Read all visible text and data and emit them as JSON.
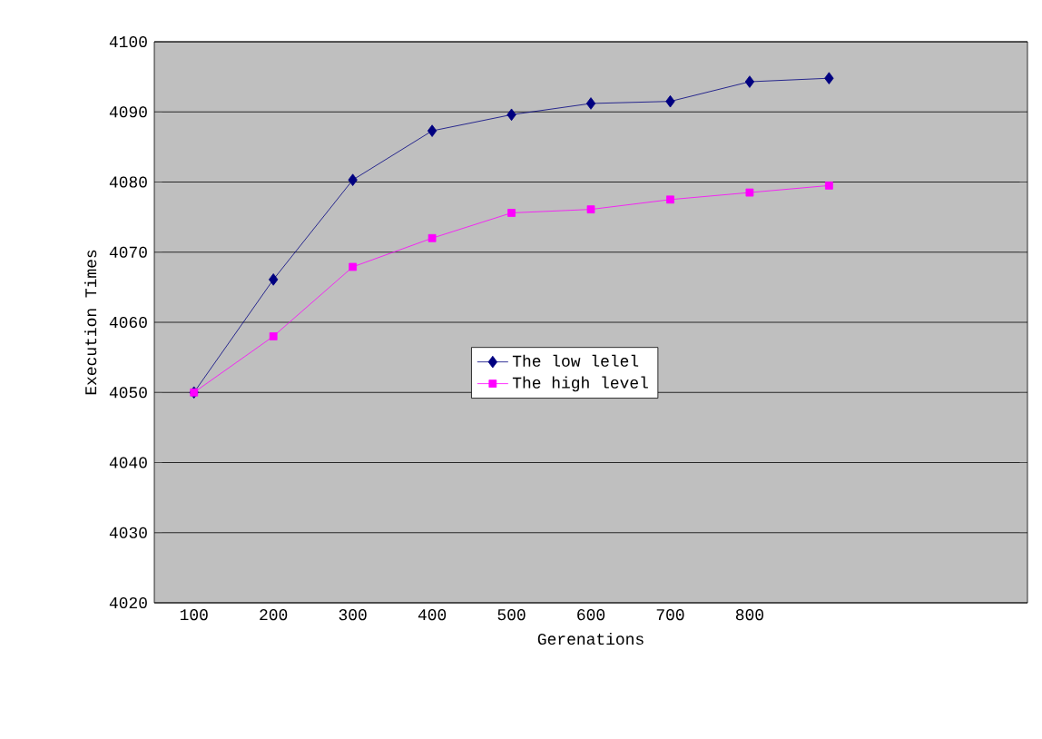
{
  "chart_data": {
    "type": "line",
    "xlabel": "Gerenations",
    "ylabel": "Execution Times",
    "categories": [
      "100",
      "200",
      "300",
      "400",
      "500",
      "600",
      "700",
      "800",
      null,
      null,
      null
    ],
    "series": [
      {
        "name": "The low lelel",
        "color": "#000080",
        "marker": "diamond",
        "values": [
          4050,
          4066.1,
          4080.3,
          4087.3,
          4089.6,
          4091.2,
          4091.5,
          4094.3,
          4094.8,
          null,
          null
        ]
      },
      {
        "name": "The high level",
        "color": "#ff00ff",
        "marker": "square",
        "values": [
          4050,
          4058,
          4067.9,
          4072,
          4075.6,
          4076.1,
          4077.5,
          4078.5,
          4079.5,
          null,
          null
        ]
      }
    ],
    "ylim": [
      4020,
      4100
    ],
    "yticks": [
      4020,
      4030,
      4040,
      4050,
      4060,
      4070,
      4080,
      4090,
      4100
    ],
    "grid": "y",
    "legend": "center"
  }
}
